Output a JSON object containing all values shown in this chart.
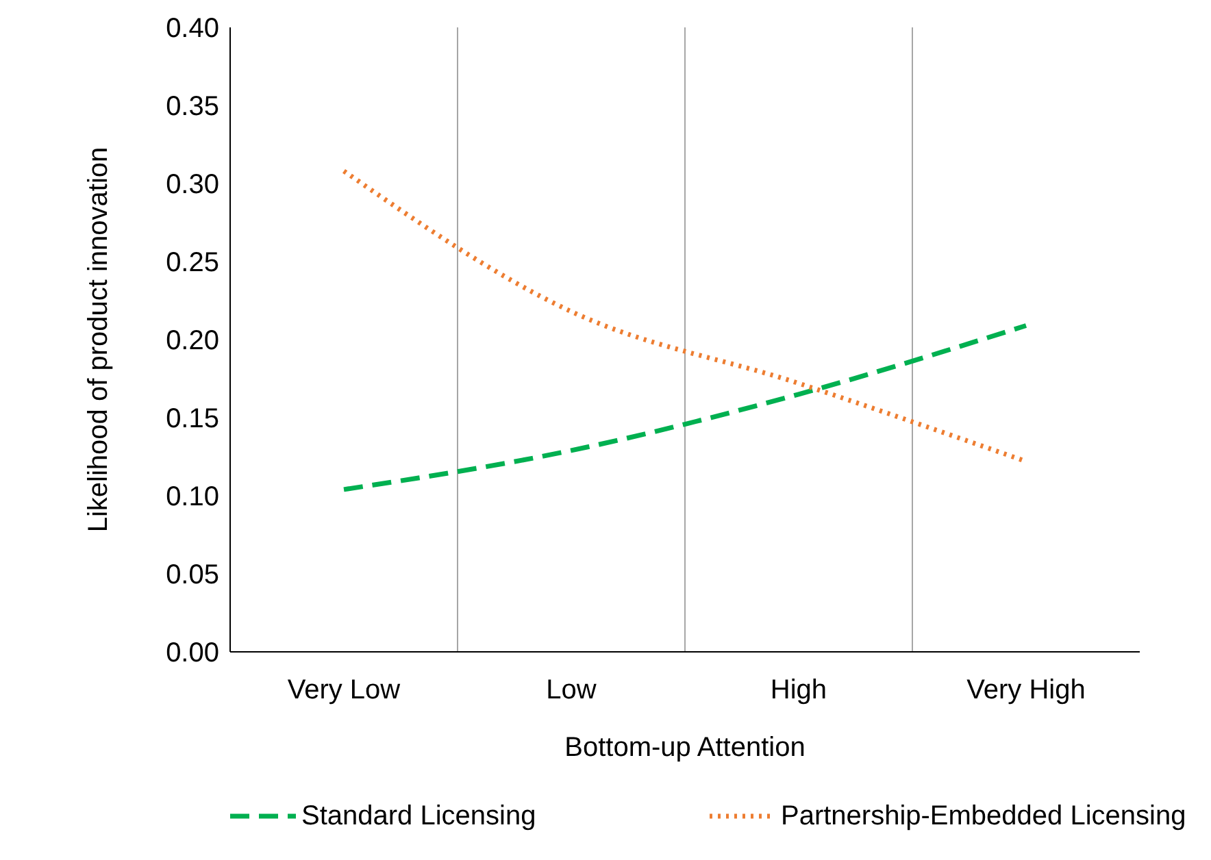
{
  "chart_data": {
    "type": "line",
    "xlabel": "Bottom-up Attention",
    "ylabel": "Likelihood of product innovation",
    "categories": [
      "Very Low",
      "Low",
      "High",
      "Very High"
    ],
    "series": [
      {
        "name": "Standard Licensing",
        "color": "#00b050",
        "line_style": "dashed",
        "values": [
          0.104,
          0.129,
          0.165,
          0.209
        ]
      },
      {
        "name": "Partnership-Embedded Licensing",
        "color": "#ed7d31",
        "line_style": "dotted",
        "values": [
          0.308,
          0.218,
          0.172,
          0.122
        ]
      }
    ],
    "ylim": [
      0,
      0.4
    ],
    "yticks": [
      {
        "value": 0,
        "label": "0.00"
      },
      {
        "value": 0.05,
        "label": "0.05"
      },
      {
        "value": 0.1,
        "label": "0.10"
      },
      {
        "value": 0.15,
        "label": "0.15"
      },
      {
        "value": 0.2,
        "label": "0.20"
      },
      {
        "value": 0.25,
        "label": "0.25"
      },
      {
        "value": 0.3,
        "label": "0.30"
      },
      {
        "value": 0.35,
        "label": "0.35"
      },
      {
        "value": 0.4,
        "label": "0.40"
      }
    ],
    "grid": "x",
    "legend": "bottom"
  }
}
